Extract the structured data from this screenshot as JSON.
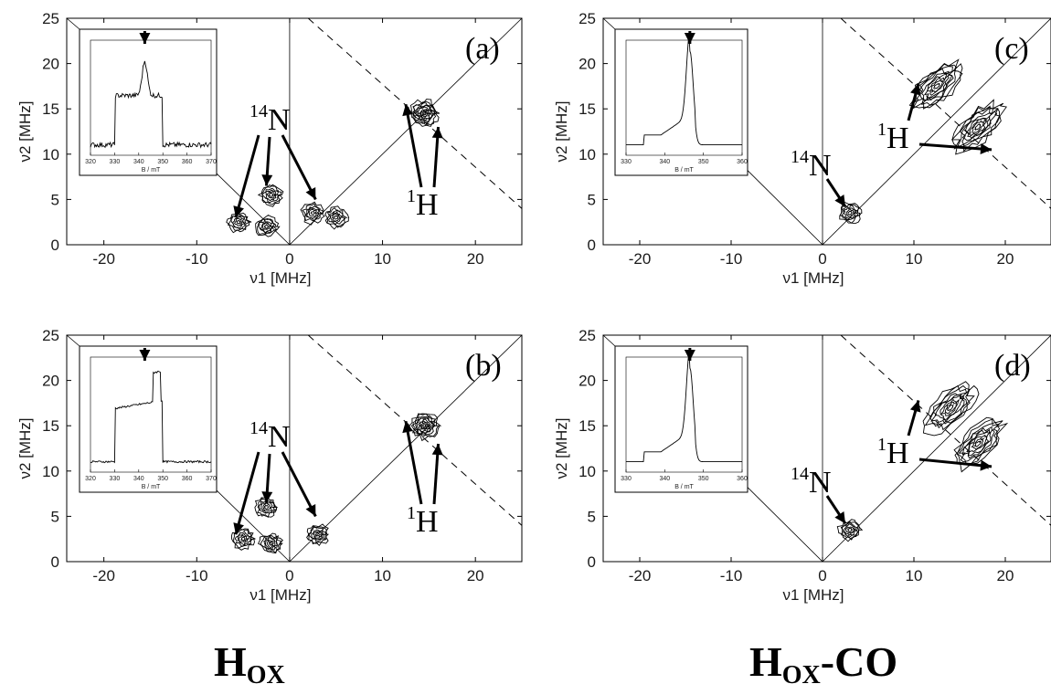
{
  "chart_data": [
    {
      "type": "scatter",
      "panel_label": "(a)",
      "xlabel": "ν1 [MHz]",
      "ylabel": "ν2 [MHz]",
      "xlim": [
        -24,
        25
      ],
      "ylim": [
        0,
        25
      ],
      "x_ticks": [
        "-20",
        "-10",
        "0",
        "10",
        "20"
      ],
      "y_ticks": [
        "0",
        "5",
        "10",
        "15",
        "20",
        "25"
      ],
      "clusters": [
        {
          "x": -5.5,
          "y": 2.5
        },
        {
          "x": -2.0,
          "y": 5.5
        },
        {
          "x": -2.5,
          "y": 2.0
        },
        {
          "x": 2.5,
          "y": 3.5
        },
        {
          "x": 5.0,
          "y": 3.0
        },
        {
          "x": 14.5,
          "y": 14.5
        }
      ],
      "annotations": [
        "14N",
        "1H"
      ],
      "inset": {
        "xlabel": "B / mT",
        "xlim": [
          320,
          370
        ],
        "x_ticks": [
          "320",
          "330",
          "340",
          "350",
          "360",
          "370"
        ]
      }
    },
    {
      "type": "scatter",
      "panel_label": "(b)",
      "xlabel": "ν1 [MHz]",
      "ylabel": "ν2 [MHz]",
      "xlim": [
        -24,
        25
      ],
      "ylim": [
        0,
        25
      ],
      "x_ticks": [
        "-20",
        "-10",
        "0",
        "10",
        "20"
      ],
      "y_ticks": [
        "0",
        "5",
        "10",
        "15",
        "20",
        "25"
      ],
      "clusters": [
        {
          "x": -5.0,
          "y": 2.5
        },
        {
          "x": -2.5,
          "y": 6.0
        },
        {
          "x": -2.0,
          "y": 2.0
        },
        {
          "x": 3.0,
          "y": 3.0
        },
        {
          "x": 14.5,
          "y": 15.0
        }
      ],
      "annotations": [
        "14N",
        "1H"
      ],
      "inset": {
        "xlabel": "B / mT",
        "xlim": [
          320,
          370
        ],
        "x_ticks": [
          "320",
          "330",
          "340",
          "350",
          "360",
          "370"
        ]
      }
    },
    {
      "type": "scatter",
      "panel_label": "(c)",
      "xlabel": "ν1 [MHz]",
      "ylabel": "ν2 [MHz]",
      "xlim": [
        -24,
        25
      ],
      "ylim": [
        0,
        25
      ],
      "x_ticks": [
        "-20",
        "-10",
        "0",
        "10",
        "20"
      ],
      "y_ticks": [
        "0",
        "5",
        "10",
        "15",
        "20",
        "25"
      ],
      "clusters": [
        {
          "x": 3.0,
          "y": 3.5
        },
        {
          "x": 12.5,
          "y": 17.5
        },
        {
          "x": 17.0,
          "y": 13.0
        }
      ],
      "annotations": [
        "14N",
        "1H"
      ],
      "inset": {
        "xlabel": "B / mT",
        "xlim": [
          330,
          360
        ],
        "x_ticks": [
          "330",
          "340",
          "350",
          "360"
        ]
      }
    },
    {
      "type": "scatter",
      "panel_label": "(d)",
      "xlabel": "ν1 [MHz]",
      "ylabel": "ν2 [MHz]",
      "xlim": [
        -24,
        25
      ],
      "ylim": [
        0,
        25
      ],
      "x_ticks": [
        "-20",
        "-10",
        "0",
        "10",
        "20"
      ],
      "y_ticks": [
        "0",
        "5",
        "10",
        "15",
        "20",
        "25"
      ],
      "clusters": [
        {
          "x": 3.0,
          "y": 3.5
        },
        {
          "x": 14.0,
          "y": 17.0
        },
        {
          "x": 17.0,
          "y": 13.0
        }
      ],
      "annotations": [
        "14N",
        "1H"
      ],
      "inset": {
        "xlabel": "B / mT",
        "xlim": [
          330,
          360
        ],
        "x_ticks": [
          "330",
          "340",
          "350",
          "360"
        ]
      }
    }
  ],
  "captions": {
    "left": {
      "main": "H",
      "sub": "OX"
    },
    "right": {
      "main": "H",
      "sub": "OX",
      "suffix": "-CO"
    }
  }
}
